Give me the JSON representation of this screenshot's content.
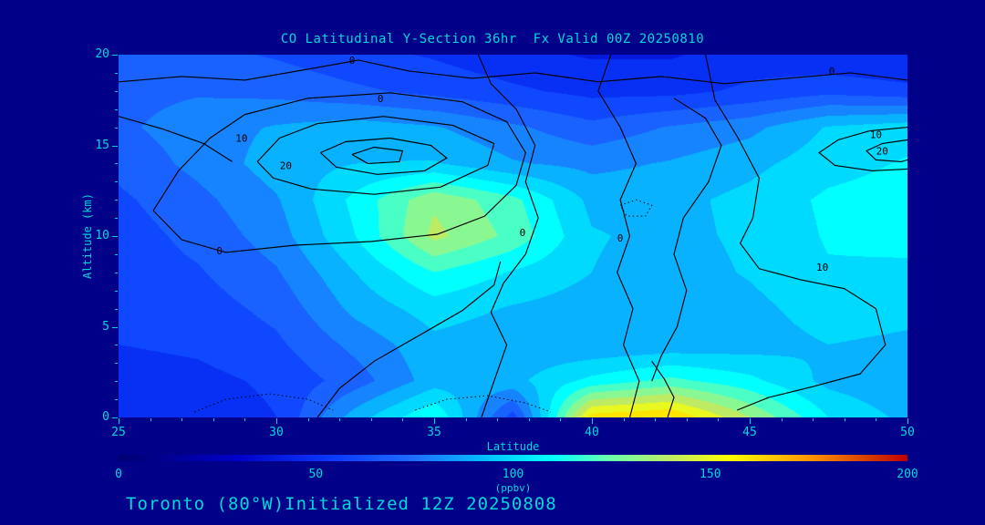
{
  "page": {
    "background": "#000089",
    "text_color": "#00d9d9"
  },
  "footer": {
    "caption": "Toronto (80°W)Initialized 12Z 20250808"
  },
  "chart_data": {
    "type": "heatmap",
    "title": "CO Latitudinal Y-Section 36hr  Fx Valid 00Z 20250810",
    "xlabel": "Latitude",
    "ylabel": "Altitude (km)",
    "xlim": [
      25,
      50
    ],
    "ylim": [
      0,
      20
    ],
    "x_ticks": [
      25,
      30,
      35,
      40,
      45,
      50
    ],
    "y_ticks": [
      0,
      5,
      10,
      15,
      20
    ],
    "minor_tick_step_x": 1,
    "minor_tick_step_y": 1,
    "grid_note": "values_ppbv rows correspond to alt[] bottom-to-top, columns to lat[] west-to-east; units ppbv",
    "lat": [
      25,
      27.5,
      30,
      32.5,
      35,
      37.5,
      40,
      42.5,
      45,
      47.5,
      50
    ],
    "alt": [
      0,
      2,
      4,
      6,
      8,
      10,
      12,
      14,
      16,
      18,
      20
    ],
    "values_ppbv": [
      [
        45,
        48,
        55,
        90,
        115,
        60,
        160,
        165,
        135,
        105,
        92
      ],
      [
        50,
        52,
        57,
        70,
        90,
        92,
        108,
        118,
        108,
        92,
        86
      ],
      [
        55,
        57,
        63,
        78,
        92,
        88,
        86,
        88,
        90,
        95,
        93
      ],
      [
        57,
        60,
        68,
        88,
        100,
        94,
        90,
        86,
        92,
        100,
        98
      ],
      [
        60,
        64,
        74,
        95,
        115,
        104,
        95,
        90,
        96,
        104,
        103
      ],
      [
        60,
        68,
        80,
        105,
        138,
        122,
        96,
        92,
        97,
        106,
        108
      ],
      [
        63,
        72,
        84,
        108,
        133,
        118,
        92,
        92,
        98,
        107,
        110
      ],
      [
        68,
        78,
        90,
        95,
        96,
        86,
        82,
        86,
        92,
        101,
        106
      ],
      [
        73,
        80,
        86,
        90,
        86,
        77,
        68,
        76,
        82,
        96,
        101
      ],
      [
        72,
        74,
        72,
        67,
        62,
        57,
        52,
        52,
        57,
        62,
        58
      ],
      [
        68,
        68,
        64,
        58,
        54,
        48,
        44,
        44,
        50,
        47,
        45
      ]
    ],
    "colormap": [
      {
        "v": 0,
        "rgb": [
          0,
          0,
          110
        ]
      },
      {
        "v": 30,
        "rgb": [
          0,
          0,
          200
        ]
      },
      {
        "v": 55,
        "rgb": [
          10,
          60,
          255
        ]
      },
      {
        "v": 75,
        "rgb": [
          30,
          110,
          255
        ]
      },
      {
        "v": 95,
        "rgb": [
          0,
          200,
          255
        ]
      },
      {
        "v": 110,
        "rgb": [
          0,
          255,
          255
        ]
      },
      {
        "v": 125,
        "rgb": [
          110,
          255,
          170
        ]
      },
      {
        "v": 140,
        "rgb": [
          190,
          235,
          100
        ]
      },
      {
        "v": 155,
        "rgb": [
          255,
          255,
          0
        ]
      },
      {
        "v": 175,
        "rgb": [
          255,
          150,
          0
        ]
      },
      {
        "v": 200,
        "rgb": [
          190,
          0,
          0
        ]
      }
    ],
    "colorbar": {
      "min": 0,
      "max": 200,
      "ticks": [
        0,
        50,
        100,
        150,
        200
      ],
      "units": "(ppbv)"
    },
    "contours": [
      {
        "label": "20",
        "style": "solid",
        "points": [
          [
            31.4,
            14.6
          ],
          [
            32.2,
            15.2
          ],
          [
            33.6,
            15.4
          ],
          [
            34.9,
            15.0
          ],
          [
            35.4,
            14.3
          ],
          [
            34.7,
            13.6
          ],
          [
            33.2,
            13.4
          ],
          [
            31.9,
            13.8
          ],
          [
            31.4,
            14.6
          ]
        ]
      },
      {
        "label": "",
        "style": "solid",
        "points": [
          [
            32.4,
            14.5
          ],
          [
            33.1,
            14.9
          ],
          [
            34.0,
            14.7
          ],
          [
            33.9,
            14.1
          ],
          [
            32.9,
            14.0
          ],
          [
            32.4,
            14.5
          ]
        ]
      },
      {
        "label": "10",
        "style": "solid",
        "points": [
          [
            29.4,
            14.1
          ],
          [
            30.1,
            15.4
          ],
          [
            31.3,
            16.2
          ],
          [
            33.4,
            16.6
          ],
          [
            35.6,
            16.1
          ],
          [
            36.9,
            15.1
          ],
          [
            36.7,
            13.9
          ],
          [
            35.2,
            12.7
          ],
          [
            33.1,
            12.3
          ],
          [
            31.1,
            12.6
          ],
          [
            29.9,
            13.2
          ],
          [
            29.4,
            14.1
          ]
        ]
      },
      {
        "label": "0",
        "style": "solid",
        "points": [
          [
            26.1,
            11.4
          ],
          [
            26.9,
            13.6
          ],
          [
            27.9,
            15.4
          ],
          [
            29.0,
            16.7
          ],
          [
            31.0,
            17.6
          ],
          [
            33.6,
            17.9
          ],
          [
            35.9,
            17.4
          ],
          [
            37.3,
            16.3
          ],
          [
            37.9,
            14.6
          ],
          [
            37.6,
            12.8
          ],
          [
            36.6,
            11.1
          ],
          [
            35.1,
            10.1
          ],
          [
            33.0,
            9.7
          ],
          [
            30.6,
            9.5
          ],
          [
            28.4,
            9.1
          ],
          [
            27.0,
            9.8
          ],
          [
            26.1,
            11.4
          ]
        ]
      },
      {
        "label": "0",
        "style": "solid",
        "points": [
          [
            25,
            18.5
          ],
          [
            27,
            18.8
          ],
          [
            29,
            18.6
          ],
          [
            31,
            19.2
          ],
          [
            32.6,
            19.7
          ],
          [
            34.2,
            19.1
          ],
          [
            36.2,
            18.7
          ],
          [
            38.2,
            19.0
          ],
          [
            40.2,
            18.5
          ],
          [
            42.2,
            18.8
          ],
          [
            44.2,
            18.4
          ],
          [
            46.2,
            18.7
          ],
          [
            48.2,
            19.0
          ],
          [
            50,
            18.6
          ]
        ]
      },
      {
        "label": "0",
        "style": "solid",
        "points": [
          [
            36.4,
            20
          ],
          [
            36.8,
            18.4
          ],
          [
            37.6,
            17.0
          ],
          [
            38.2,
            15.0
          ],
          [
            37.9,
            13.0
          ],
          [
            38.3,
            11.0
          ],
          [
            37.9,
            9.0
          ],
          [
            37.2,
            7.4
          ],
          [
            36.8,
            5.8
          ],
          [
            37.3,
            4.0
          ],
          [
            36.9,
            2.0
          ],
          [
            36.5,
            0
          ]
        ]
      },
      {
        "label": "0",
        "style": "solid",
        "points": [
          [
            40.6,
            20
          ],
          [
            40.2,
            18.0
          ],
          [
            40.9,
            16.0
          ],
          [
            41.4,
            14.0
          ],
          [
            40.9,
            12.0
          ],
          [
            41.2,
            10.0
          ],
          [
            40.8,
            8.0
          ],
          [
            41.3,
            6.0
          ],
          [
            41.0,
            4.0
          ],
          [
            41.5,
            2.0
          ],
          [
            41.2,
            0
          ]
        ]
      },
      {
        "label": "",
        "style": "solid",
        "points": [
          [
            42.6,
            17.6
          ],
          [
            43.6,
            16.5
          ],
          [
            44.1,
            15.0
          ],
          [
            43.7,
            13.0
          ],
          [
            42.9,
            11.0
          ],
          [
            42.6,
            9.0
          ],
          [
            43.0,
            7.0
          ],
          [
            42.7,
            5.0
          ],
          [
            42.2,
            3.4
          ],
          [
            41.9,
            2.0
          ]
        ]
      },
      {
        "label": "10",
        "style": "solid",
        "points": [
          [
            43.6,
            20
          ],
          [
            43.9,
            17.5
          ],
          [
            44.6,
            15.5
          ],
          [
            45.3,
            13.2
          ],
          [
            45.1,
            11.0
          ],
          [
            44.7,
            9.6
          ],
          [
            45.3,
            8.2
          ],
          [
            46.6,
            7.6
          ],
          [
            48.0,
            7.1
          ],
          [
            49.0,
            6.0
          ],
          [
            49.3,
            4.0
          ],
          [
            48.5,
            2.4
          ],
          [
            47.0,
            1.7
          ],
          [
            45.6,
            1.1
          ],
          [
            44.6,
            0.4
          ]
        ]
      },
      {
        "label": "10",
        "style": "solid",
        "points": [
          [
            50,
            16.0
          ],
          [
            48.8,
            15.8
          ],
          [
            47.8,
            15.3
          ],
          [
            47.2,
            14.6
          ],
          [
            47.7,
            13.9
          ],
          [
            48.9,
            13.6
          ],
          [
            50,
            13.7
          ]
        ]
      },
      {
        "label": "20",
        "style": "solid",
        "points": [
          [
            50,
            15.3
          ],
          [
            49.2,
            15.1
          ],
          [
            48.7,
            14.7
          ],
          [
            49.0,
            14.2
          ],
          [
            49.8,
            14.1
          ],
          [
            50,
            14.2
          ]
        ]
      },
      {
        "label": "",
        "style": "dotted",
        "points": [
          [
            40.9,
            11.7
          ],
          [
            41.4,
            12.0
          ],
          [
            41.9,
            11.7
          ],
          [
            41.7,
            11.1
          ],
          [
            41.1,
            11.1
          ],
          [
            40.9,
            11.7
          ]
        ]
      },
      {
        "label": "",
        "style": "dotted",
        "points": [
          [
            27.4,
            0.3
          ],
          [
            28.4,
            1.0
          ],
          [
            29.8,
            1.3
          ],
          [
            31.0,
            1.0
          ],
          [
            31.8,
            0.4
          ]
        ]
      },
      {
        "label": "",
        "style": "dotted",
        "points": [
          [
            34.4,
            0.4
          ],
          [
            35.4,
            1.0
          ],
          [
            36.7,
            1.2
          ],
          [
            37.9,
            0.8
          ],
          [
            38.7,
            0.3
          ]
        ]
      },
      {
        "label": "",
        "style": "solid",
        "points": [
          [
            25,
            16.6
          ],
          [
            26.4,
            15.9
          ],
          [
            27.7,
            15.1
          ],
          [
            28.6,
            14.1
          ]
        ]
      },
      {
        "label": "",
        "style": "solid",
        "points": [
          [
            31.3,
            0
          ],
          [
            32.0,
            1.6
          ],
          [
            33.1,
            3.1
          ],
          [
            34.6,
            4.6
          ],
          [
            35.9,
            5.9
          ],
          [
            36.9,
            7.3
          ],
          [
            37.1,
            8.6
          ]
        ]
      },
      {
        "label": "",
        "style": "solid",
        "points": [
          [
            42.4,
            0
          ],
          [
            42.6,
            1.1
          ],
          [
            42.3,
            2.1
          ],
          [
            41.9,
            3.1
          ]
        ]
      }
    ],
    "contour_labels": [
      {
        "text": "0",
        "lat": 32.4,
        "alt": 19.7
      },
      {
        "text": "0",
        "lat": 47.6,
        "alt": 19.1
      },
      {
        "text": "10",
        "lat": 28.9,
        "alt": 15.4
      },
      {
        "text": "20",
        "lat": 30.3,
        "alt": 13.9
      },
      {
        "text": "0",
        "lat": 33.3,
        "alt": 17.6
      },
      {
        "text": "0",
        "lat": 28.2,
        "alt": 9.2
      },
      {
        "text": "0",
        "lat": 37.8,
        "alt": 10.2
      },
      {
        "text": "0",
        "lat": 40.9,
        "alt": 9.9
      },
      {
        "text": "10",
        "lat": 47.3,
        "alt": 8.3
      },
      {
        "text": "10",
        "lat": 49.0,
        "alt": 15.6
      },
      {
        "text": "20",
        "lat": 49.2,
        "alt": 14.7
      }
    ]
  }
}
